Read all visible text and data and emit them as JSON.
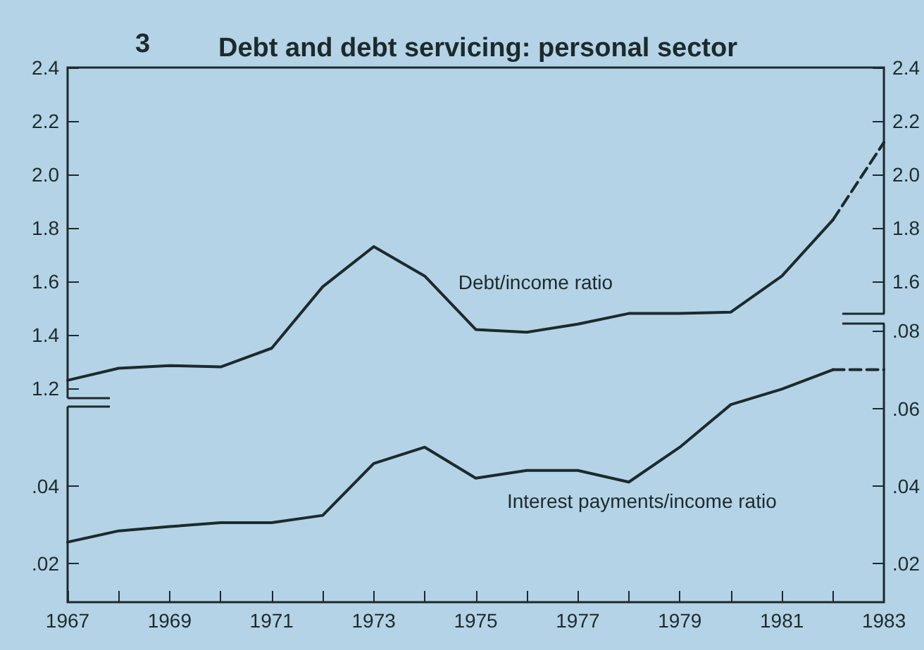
{
  "chart_data": [
    {
      "type": "line",
      "title": "Debt and debt servicing: personal sector",
      "annotations": [
        "3"
      ],
      "x": [
        1967,
        1968,
        1969,
        1970,
        1971,
        1972,
        1973,
        1974,
        1975,
        1976,
        1977,
        1978,
        1979,
        1980,
        1981,
        1982,
        1983
      ],
      "xlim": [
        1967,
        1983
      ],
      "xticks": [
        1967,
        1983
      ],
      "tick_labels": "y",
      "ylim": [
        0.4,
        2.4
      ],
      "yticks": [
        1.2,
        1.4,
        1.6,
        1.8,
        {
          "value": 2,
          "label": "2.0"
        },
        2.2,
        2.4
      ],
      "y2lim": [
        0.4,
        2.4
      ],
      "y2ticks": [
        1.6,
        1.8,
        {
          "value": 2,
          "label": "2.0"
        },
        2.2,
        2.4
      ],
      "grid": false,
      "legend": false,
      "marker": "none",
      "series": [
        {
          "name": "Debt/income ratio",
          "color": "#1c2a2c",
          "line_style": "solid",
          "values": [
            1.23,
            1.275,
            1.285,
            1.28,
            1.35,
            1.58,
            1.73,
            1.62,
            1.42,
            1.41,
            1.44,
            1.48,
            1.48,
            1.485,
            1.62,
            1.83,
            null
          ]
        },
        {
          "color": "#1c2a2c",
          "line_style": "dashed",
          "values": [
            null,
            null,
            null,
            null,
            null,
            null,
            null,
            null,
            null,
            null,
            null,
            null,
            null,
            null,
            null,
            1.83,
            2.12
          ]
        }
      ]
    },
    {
      "type": "line",
      "x": [
        1967,
        1968,
        1969,
        1970,
        1971,
        1972,
        1973,
        1974,
        1975,
        1976,
        1977,
        1978,
        1979,
        1980,
        1981,
        1982,
        1983
      ],
      "xlim": [
        1967,
        1983
      ],
      "xticks": [
        1967,
        {
          "value": 1968,
          "label": null
        },
        1969,
        {
          "value": 1970,
          "label": null
        },
        1971,
        {
          "value": 1972,
          "label": null
        },
        1973,
        {
          "value": 1974,
          "label": null
        },
        1975,
        {
          "value": 1976,
          "label": null
        },
        1977,
        {
          "value": 1978,
          "label": null
        },
        1979,
        {
          "value": 1980,
          "label": null
        },
        1981,
        {
          "value": 1982,
          "label": null
        },
        1983
      ],
      "ylim": [
        0.01,
        0.148
      ],
      "yticks": [
        {
          "value": 0.02,
          "label": ".02"
        },
        {
          "value": 0.04,
          "label": ".04"
        }
      ],
      "y2lim": [
        0.01,
        0.148
      ],
      "y2ticks": [
        {
          "value": 0.02,
          "label": ".02"
        },
        {
          "value": 0.04,
          "label": ".04"
        },
        {
          "value": 0.06,
          "label": ".06"
        },
        {
          "value": 0.08,
          "label": ".08"
        }
      ],
      "grid": false,
      "legend": false,
      "marker": "none",
      "series": [
        {
          "name": "Interest payments/income ratio",
          "color": "#1c2a2c",
          "line_style": "solid",
          "values": [
            0.0255,
            0.0284,
            0.0295,
            0.0305,
            0.0305,
            0.0324,
            0.0458,
            0.05,
            0.042,
            0.044,
            0.044,
            0.041,
            0.05,
            0.061,
            0.065,
            0.07,
            null
          ]
        },
        {
          "color": "#1c2a2c",
          "line_style": "dashed",
          "values": [
            null,
            null,
            null,
            null,
            null,
            null,
            null,
            null,
            null,
            null,
            null,
            null,
            null,
            null,
            null,
            0.07,
            0.07
          ]
        }
      ]
    }
  ]
}
